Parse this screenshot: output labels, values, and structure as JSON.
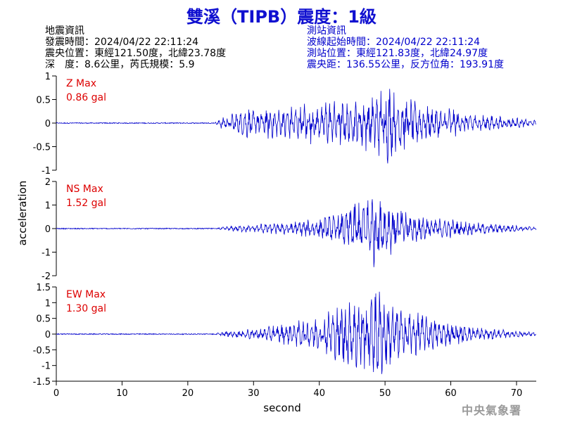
{
  "title": "雙溪（TIPB）震度：1級",
  "quake_info": {
    "heading": "地震資訊",
    "time_label": "發震時間：",
    "time": "2024/04/22 22:11:24",
    "location_label": "震央位置：",
    "location": "東經121.50度，北緯23.78度",
    "depth_label": "深　度：",
    "depth": "8.6公里，芮氏規模：5.9"
  },
  "station_info": {
    "heading": "測站資訊",
    "onset_label": "波線起始時間：",
    "onset": "2024/04/22 22:11:24",
    "position_label": "測站位置：",
    "position": "東經121.83度，北緯24.97度",
    "distance_label": "震央距：",
    "distance": "136.55公里，反方位角：193.91度"
  },
  "watermark": "中央氣象署",
  "colors": {
    "title": "#1010d0",
    "trace": "#0000cc",
    "label": "#dd0000",
    "station_text": "#0000cc"
  },
  "chart_data": [
    {
      "type": "line",
      "channel": "Z",
      "max_label": "Z Max",
      "max_value": "0.86 gal",
      "ylim": [
        -1,
        1
      ],
      "yticks": [
        "1",
        "0.5",
        "0",
        "-0.5",
        "-1"
      ],
      "ytick_values": [
        1,
        0.5,
        0,
        -0.5,
        -1
      ],
      "xlim": [
        0,
        73
      ],
      "series": [
        {
          "x": [
            0,
            2,
            4,
            6,
            8,
            10,
            12,
            14,
            16,
            18,
            20,
            22,
            24,
            25,
            26,
            27,
            28,
            29,
            30,
            31,
            32,
            33,
            34,
            35,
            36,
            37,
            38,
            39,
            40,
            41,
            42,
            43,
            44,
            45,
            46,
            47,
            48,
            49,
            50,
            51,
            52,
            53,
            54,
            55,
            56,
            57,
            58,
            59,
            60,
            61,
            62,
            63,
            64,
            65,
            66,
            67,
            68,
            69,
            70,
            71,
            72,
            73
          ],
          "y": [
            0,
            0.01,
            -0.01,
            0.01,
            0,
            -0.01,
            0,
            0.01,
            -0.01,
            0,
            0.01,
            -0.01,
            0,
            0.1,
            -0.12,
            0.2,
            -0.2,
            0.3,
            -0.22,
            0.25,
            -0.3,
            0.28,
            -0.25,
            0.35,
            -0.3,
            0.32,
            -0.4,
            0.38,
            -0.28,
            0.42,
            -0.4,
            0.45,
            -0.38,
            0.4,
            -0.45,
            0.55,
            -0.5,
            0.58,
            -0.86,
            0.6,
            -0.55,
            0.5,
            -0.45,
            0.38,
            -0.35,
            0.3,
            -0.28,
            0.25,
            -0.3,
            0.22,
            -0.2,
            0.18,
            -0.2,
            0.15,
            -0.15,
            0.12,
            -0.12,
            0.1,
            -0.1,
            0.08,
            -0.06,
            0.05
          ]
        }
      ]
    },
    {
      "type": "line",
      "channel": "NS",
      "max_label": "NS Max",
      "max_value": "1.52 gal",
      "ylim": [
        -2,
        2
      ],
      "yticks": [
        "2",
        "1",
        "0",
        "-1",
        "-2"
      ],
      "ytick_values": [
        2,
        1,
        0,
        -1,
        -2
      ],
      "xlim": [
        0,
        73
      ],
      "series": [
        {
          "x": [
            0,
            2,
            4,
            6,
            8,
            10,
            12,
            14,
            16,
            18,
            20,
            22,
            24,
            25,
            26,
            27,
            28,
            29,
            30,
            31,
            32,
            33,
            34,
            35,
            36,
            37,
            38,
            39,
            40,
            41,
            42,
            43,
            44,
            45,
            46,
            47,
            48,
            49,
            50,
            51,
            52,
            53,
            54,
            55,
            56,
            57,
            58,
            59,
            60,
            61,
            62,
            63,
            64,
            65,
            66,
            67,
            68,
            69,
            70,
            71,
            72,
            73
          ],
          "y": [
            0,
            0.01,
            0,
            -0.01,
            0,
            0.01,
            0,
            -0.01,
            0,
            0.01,
            0,
            -0.01,
            0,
            0.05,
            -0.08,
            0.1,
            -0.12,
            0.15,
            -0.12,
            0.18,
            -0.2,
            0.22,
            -0.2,
            0.25,
            -0.28,
            0.3,
            -0.32,
            0.35,
            -0.4,
            0.45,
            -0.5,
            0.6,
            -0.7,
            0.9,
            -1.2,
            1.0,
            -1.52,
            1.1,
            -0.9,
            0.95,
            -0.8,
            0.7,
            -0.6,
            0.55,
            -0.5,
            0.45,
            -0.4,
            0.38,
            -0.35,
            0.3,
            -0.3,
            0.25,
            -0.22,
            0.2,
            -0.2,
            0.18,
            -0.15,
            0.15,
            -0.12,
            0.1,
            -0.08,
            0.08
          ]
        }
      ]
    },
    {
      "type": "line",
      "channel": "EW",
      "max_label": "EW Max",
      "max_value": "1.30 gal",
      "ylim": [
        -1.5,
        1.5
      ],
      "yticks": [
        "1.5",
        "1",
        "0.5",
        "0",
        "-0.5",
        "-1",
        "-1.5"
      ],
      "ytick_values": [
        1.5,
        1,
        0.5,
        0,
        -0.5,
        -1,
        -1.5
      ],
      "xlim": [
        0,
        73
      ],
      "xticks": [
        "0",
        "10",
        "20",
        "30",
        "40",
        "50",
        "60",
        "70"
      ],
      "xtick_values": [
        0,
        10,
        20,
        30,
        40,
        50,
        60,
        70
      ],
      "xlabel": "second",
      "series": [
        {
          "x": [
            0,
            2,
            4,
            6,
            8,
            10,
            12,
            14,
            16,
            18,
            20,
            22,
            24,
            25,
            26,
            27,
            28,
            29,
            30,
            31,
            32,
            33,
            34,
            35,
            36,
            37,
            38,
            39,
            40,
            41,
            42,
            43,
            44,
            45,
            46,
            47,
            48,
            49,
            50,
            51,
            52,
            53,
            54,
            55,
            56,
            57,
            58,
            59,
            60,
            61,
            62,
            63,
            64,
            65,
            66,
            67,
            68,
            69,
            70,
            71,
            72,
            73
          ],
          "y": [
            0,
            0.01,
            -0.01,
            0,
            0.01,
            -0.01,
            0,
            0.01,
            0,
            -0.01,
            0.01,
            0,
            0,
            0.06,
            -0.08,
            0.1,
            -0.12,
            0.15,
            -0.15,
            0.2,
            -0.18,
            0.25,
            -0.25,
            0.3,
            -0.3,
            0.4,
            -0.38,
            0.5,
            -0.45,
            0.6,
            -0.7,
            0.8,
            -1.1,
            0.9,
            -1.25,
            1.0,
            -1.1,
            1.3,
            -1.0,
            0.9,
            -0.8,
            0.7,
            -0.65,
            0.6,
            -0.5,
            0.45,
            -0.4,
            0.35,
            -0.3,
            0.3,
            -0.25,
            0.22,
            -0.2,
            0.18,
            -0.15,
            0.15,
            -0.12,
            0.1,
            -0.1,
            0.08,
            -0.06,
            0.05
          ]
        }
      ]
    }
  ],
  "ylabel": "acceleration"
}
